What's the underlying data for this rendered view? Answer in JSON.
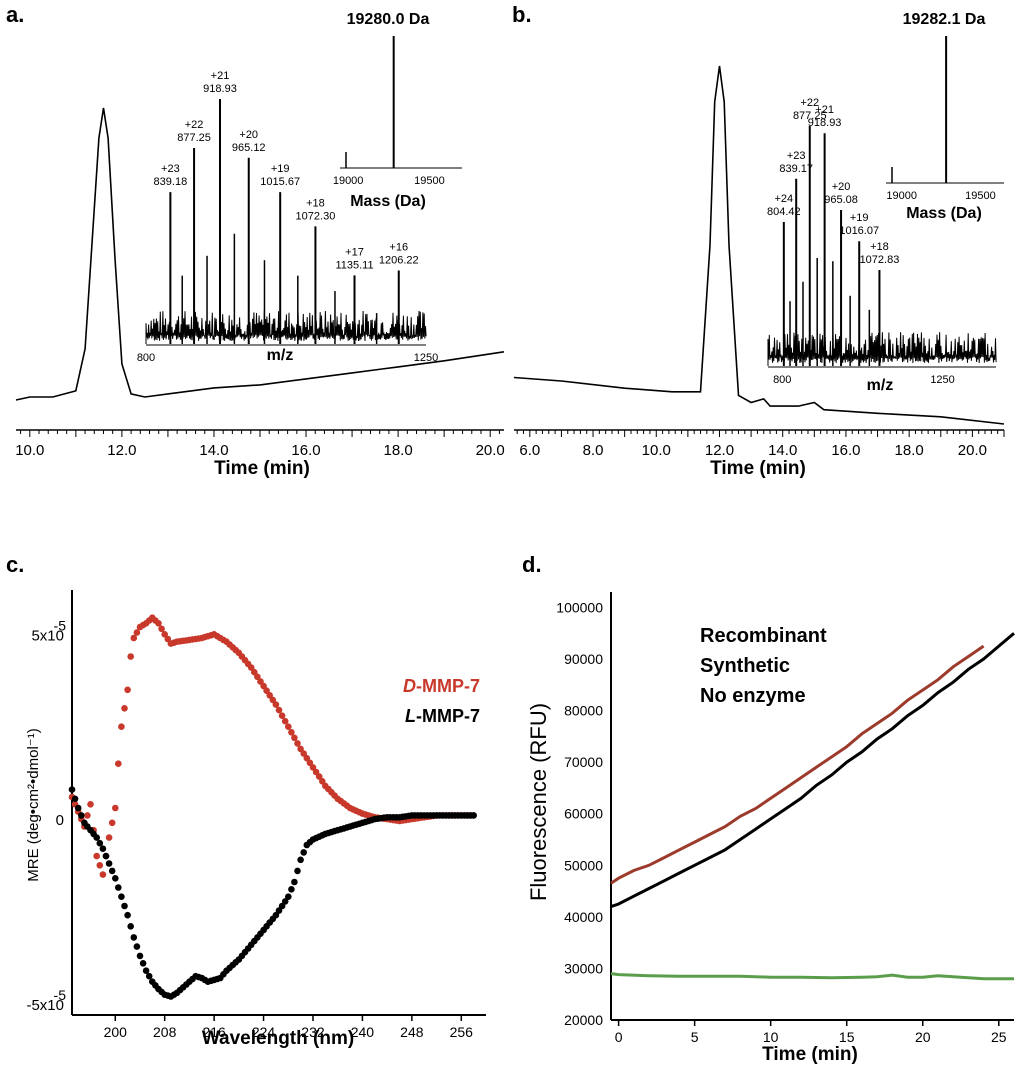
{
  "chart_data": [
    {
      "id": "a",
      "panel_label": "a.",
      "type": "line",
      "xlabel": "Time (min)",
      "xlim": [
        9.7,
        20.3
      ],
      "x_ticks": [
        "10.0",
        "12.0",
        "14.0",
        "16.0",
        "18.0",
        "20.0"
      ],
      "chromatogram": {
        "peak_time": 11.6,
        "trace": [
          [
            9.7,
            0.03
          ],
          [
            10.0,
            0.04
          ],
          [
            10.5,
            0.04
          ],
          [
            11.0,
            0.06
          ],
          [
            11.2,
            0.2
          ],
          [
            11.35,
            0.55
          ],
          [
            11.5,
            0.9
          ],
          [
            11.6,
            1.0
          ],
          [
            11.7,
            0.9
          ],
          [
            11.85,
            0.5
          ],
          [
            12.0,
            0.15
          ],
          [
            12.2,
            0.05
          ],
          [
            12.5,
            0.04
          ],
          [
            13.0,
            0.05
          ],
          [
            14.0,
            0.07
          ],
          [
            15.0,
            0.08
          ],
          [
            16.0,
            0.1
          ],
          [
            17.0,
            0.12
          ],
          [
            18.0,
            0.14
          ],
          [
            19.0,
            0.16
          ],
          [
            20.3,
            0.19
          ]
        ]
      },
      "ms_inset": {
        "xlabel": "m/z",
        "x_ticks": [
          "800",
          "1250"
        ],
        "xlim": [
          800,
          1250
        ],
        "peaks": [
          {
            "charge": "+23",
            "mz": "839.18",
            "x": 839.18,
            "h": 0.62
          },
          {
            "charge": "+22",
            "mz": "877.25",
            "x": 877.25,
            "h": 0.8
          },
          {
            "charge": "+21",
            "mz": "918.93",
            "x": 918.93,
            "h": 1.0
          },
          {
            "charge": "+20",
            "mz": "965.12",
            "x": 965.12,
            "h": 0.76
          },
          {
            "charge": "+19",
            "mz": "1015.67",
            "x": 1015.67,
            "h": 0.62
          },
          {
            "charge": "+18",
            "mz": "1072.30",
            "x": 1072.3,
            "h": 0.48
          },
          {
            "charge": "+17",
            "mz": "1135.11",
            "x": 1135.11,
            "h": 0.28
          },
          {
            "charge": "+16",
            "mz": "1206.22",
            "x": 1206.22,
            "h": 0.3
          }
        ]
      },
      "deconv_inset": {
        "title": "19280.0 Da",
        "xlabel": "Mass (Da)",
        "x_ticks": [
          "19000",
          "19500"
        ],
        "xlim": [
          18950,
          19700
        ],
        "peak_mass": 19280.0
      }
    },
    {
      "id": "b",
      "panel_label": "b.",
      "type": "line",
      "xlabel": "Time (min)",
      "xlim": [
        5.5,
        21.0
      ],
      "x_ticks": [
        "6.0",
        "8.0",
        "10.0",
        "12.0",
        "14.0",
        "16.0",
        "18.0",
        "20.0"
      ],
      "chromatogram": {
        "peak_time": 12.0,
        "trace": [
          [
            5.5,
            0.13
          ],
          [
            7.0,
            0.12
          ],
          [
            9.0,
            0.1
          ],
          [
            10.5,
            0.09
          ],
          [
            11.4,
            0.09
          ],
          [
            11.7,
            0.5
          ],
          [
            11.85,
            0.9
          ],
          [
            12.0,
            1.0
          ],
          [
            12.15,
            0.9
          ],
          [
            12.3,
            0.5
          ],
          [
            12.6,
            0.08
          ],
          [
            13.0,
            0.06
          ],
          [
            13.4,
            0.07
          ],
          [
            13.6,
            0.05
          ],
          [
            14.5,
            0.05
          ],
          [
            15.0,
            0.06
          ],
          [
            15.3,
            0.04
          ],
          [
            17.0,
            0.03
          ],
          [
            19.0,
            0.02
          ],
          [
            21.0,
            0.0
          ]
        ]
      },
      "ms_inset": {
        "xlabel": "m/z",
        "x_ticks": [
          "800",
          "1250"
        ],
        "xlim": [
          760,
          1400
        ],
        "peaks": [
          {
            "charge": "+24",
            "mz": "804.42",
            "x": 804.42,
            "h": 0.6
          },
          {
            "charge": "+23",
            "mz": "839.17",
            "x": 839.17,
            "h": 0.78
          },
          {
            "charge": "+22",
            "mz": "877.25",
            "x": 877.25,
            "h": 1.0
          },
          {
            "charge": "+21",
            "mz": "918.93",
            "x": 918.93,
            "h": 0.97
          },
          {
            "charge": "+20",
            "mz": "965.08",
            "x": 965.08,
            "h": 0.65
          },
          {
            "charge": "+19",
            "mz": "1016.07",
            "x": 1016.07,
            "h": 0.52
          },
          {
            "charge": "+18",
            "mz": "1072.83",
            "x": 1072.83,
            "h": 0.4
          }
        ]
      },
      "deconv_inset": {
        "title": "19282.1 Da",
        "xlabel": "Mass (Da)",
        "x_ticks": [
          "19000",
          "19500"
        ],
        "xlim": [
          18900,
          19650
        ],
        "peak_mass": 19282.1
      }
    },
    {
      "id": "c",
      "panel_label": "c.",
      "type": "scatter",
      "xlabel": "Wavelength (nm)",
      "ylabel": "MRE (deg•cm²•dmol⁻¹)",
      "xlim": [
        193,
        260
      ],
      "ylim": [
        -5.3,
        6.2
      ],
      "x_ticks": [
        "200",
        "208",
        "216",
        "224",
        "232",
        "240",
        "248",
        "256"
      ],
      "y_ticks": [
        {
          "value": 5,
          "label": "5x10",
          "exp": "-5"
        },
        {
          "value": 0,
          "label": "0",
          "exp": ""
        },
        {
          "value": -5,
          "label": "-5x10",
          "exp": "-5"
        }
      ],
      "series": [
        {
          "legend_prefix": "D",
          "legend_suffix": "-MMP-7",
          "color": "#c8392b",
          "points": [
            [
              193,
              0.6
            ],
            [
              194,
              0.2
            ],
            [
              195,
              -0.2
            ],
            [
              196,
              0.4
            ],
            [
              197,
              -1.0
            ],
            [
              198,
              -1.5
            ],
            [
              199,
              -0.5
            ],
            [
              200,
              0.3
            ],
            [
              200.5,
              1.5
            ],
            [
              201,
              2.5
            ],
            [
              202,
              3.5
            ],
            [
              202.5,
              4.4
            ],
            [
              203,
              4.9
            ],
            [
              204,
              5.2
            ],
            [
              205,
              5.3
            ],
            [
              206,
              5.45
            ],
            [
              207,
              5.3
            ],
            [
              208,
              5.0
            ],
            [
              209,
              4.75
            ],
            [
              210,
              4.8
            ],
            [
              212,
              4.85
            ],
            [
              214,
              4.9
            ],
            [
              216,
              5.0
            ],
            [
              218,
              4.8
            ],
            [
              220,
              4.5
            ],
            [
              222,
              4.1
            ],
            [
              224,
              3.6
            ],
            [
              226,
              3.1
            ],
            [
              228,
              2.5
            ],
            [
              230,
              1.9
            ],
            [
              232,
              1.4
            ],
            [
              234,
              0.9
            ],
            [
              236,
              0.55
            ],
            [
              238,
              0.3
            ],
            [
              240,
              0.15
            ],
            [
              242,
              0.05
            ],
            [
              244,
              0.0
            ],
            [
              246,
              -0.05
            ],
            [
              248,
              0.0
            ],
            [
              250,
              0.05
            ],
            [
              252,
              0.1
            ],
            [
              254,
              0.1
            ],
            [
              256,
              0.1
            ],
            [
              258,
              0.1
            ]
          ]
        },
        {
          "legend_prefix": "L",
          "legend_suffix": "-MMP-7",
          "color": "#000000",
          "points": [
            [
              193,
              0.8
            ],
            [
              194,
              0.3
            ],
            [
              195,
              -0.1
            ],
            [
              196,
              -0.3
            ],
            [
              197,
              -0.5
            ],
            [
              198,
              -0.8
            ],
            [
              199,
              -1.2
            ],
            [
              200,
              -1.6
            ],
            [
              201,
              -2.1
            ],
            [
              202,
              -2.6
            ],
            [
              203,
              -3.2
            ],
            [
              204,
              -3.7
            ],
            [
              205,
              -4.1
            ],
            [
              206,
              -4.4
            ],
            [
              207,
              -4.6
            ],
            [
              208,
              -4.75
            ],
            [
              209,
              -4.8
            ],
            [
              210,
              -4.7
            ],
            [
              211,
              -4.55
            ],
            [
              212,
              -4.4
            ],
            [
              213,
              -4.25
            ],
            [
              214,
              -4.3
            ],
            [
              215,
              -4.4
            ],
            [
              216,
              -4.35
            ],
            [
              217,
              -4.3
            ],
            [
              218,
              -4.1
            ],
            [
              220,
              -3.8
            ],
            [
              222,
              -3.4
            ],
            [
              224,
              -3.0
            ],
            [
              226,
              -2.6
            ],
            [
              228,
              -2.1
            ],
            [
              229,
              -1.7
            ],
            [
              230,
              -1.1
            ],
            [
              231,
              -0.7
            ],
            [
              232,
              -0.55
            ],
            [
              234,
              -0.4
            ],
            [
              236,
              -0.3
            ],
            [
              238,
              -0.2
            ],
            [
              240,
              -0.1
            ],
            [
              242,
              0.0
            ],
            [
              244,
              0.05
            ],
            [
              246,
              0.05
            ],
            [
              248,
              0.1
            ],
            [
              250,
              0.1
            ],
            [
              252,
              0.1
            ],
            [
              254,
              0.1
            ],
            [
              256,
              0.1
            ],
            [
              258,
              0.1
            ]
          ]
        }
      ]
    },
    {
      "id": "d",
      "panel_label": "d.",
      "type": "line",
      "xlabel": "Time (min)",
      "ylabel": "Fluorescence  (RFU)",
      "xlim": [
        -0.5,
        26
      ],
      "ylim": [
        20000,
        103000
      ],
      "x_ticks": [
        "0",
        "5",
        "10",
        "15",
        "20",
        "25"
      ],
      "y_ticks": [
        "20000",
        "30000",
        "40000",
        "50000",
        "60000",
        "70000",
        "80000",
        "90000",
        "100000"
      ],
      "series": [
        {
          "name": "Recombinant",
          "color": "#9c3a2c",
          "points": [
            [
              -0.5,
              46500
            ],
            [
              0,
              47500
            ],
            [
              1,
              49000
            ],
            [
              2,
              50000
            ],
            [
              3,
              51500
            ],
            [
              4,
              53000
            ],
            [
              5,
              54500
            ],
            [
              6,
              56000
            ],
            [
              7,
              57500
            ],
            [
              8,
              59500
            ],
            [
              9,
              61000
            ],
            [
              10,
              63000
            ],
            [
              11,
              65000
            ],
            [
              12,
              67000
            ],
            [
              13,
              69000
            ],
            [
              14,
              71000
            ],
            [
              15,
              73000
            ],
            [
              16,
              75500
            ],
            [
              17,
              77500
            ],
            [
              18,
              79500
            ],
            [
              19,
              82000
            ],
            [
              20,
              84000
            ],
            [
              21,
              86000
            ],
            [
              22,
              88500
            ],
            [
              23,
              90500
            ],
            [
              24,
              92500
            ]
          ]
        },
        {
          "name": "Synthetic",
          "color": "#000000",
          "points": [
            [
              -0.5,
              42000
            ],
            [
              0,
              42500
            ],
            [
              1,
              44000
            ],
            [
              2,
              45500
            ],
            [
              3,
              47000
            ],
            [
              4,
              48500
            ],
            [
              5,
              50000
            ],
            [
              6,
              51500
            ],
            [
              7,
              53000
            ],
            [
              8,
              55000
            ],
            [
              9,
              57000
            ],
            [
              10,
              59000
            ],
            [
              11,
              61000
            ],
            [
              12,
              63000
            ],
            [
              13,
              65500
            ],
            [
              14,
              67500
            ],
            [
              15,
              70000
            ],
            [
              16,
              72000
            ],
            [
              17,
              74500
            ],
            [
              18,
              76500
            ],
            [
              19,
              79000
            ],
            [
              20,
              81000
            ],
            [
              21,
              83500
            ],
            [
              22,
              85500
            ],
            [
              23,
              88000
            ],
            [
              24,
              90000
            ],
            [
              25,
              92500
            ],
            [
              26,
              95000
            ]
          ]
        },
        {
          "name": "No enzyme",
          "color": "#5a9e4b",
          "points": [
            [
              -0.5,
              29000
            ],
            [
              0,
              28800
            ],
            [
              2,
              28600
            ],
            [
              4,
              28500
            ],
            [
              6,
              28500
            ],
            [
              8,
              28500
            ],
            [
              10,
              28300
            ],
            [
              12,
              28300
            ],
            [
              14,
              28200
            ],
            [
              16,
              28300
            ],
            [
              17,
              28400
            ],
            [
              18,
              28700
            ],
            [
              19,
              28300
            ],
            [
              20,
              28300
            ],
            [
              21,
              28600
            ],
            [
              22,
              28400
            ],
            [
              24,
              28000
            ],
            [
              26,
              28000
            ]
          ]
        }
      ]
    }
  ]
}
